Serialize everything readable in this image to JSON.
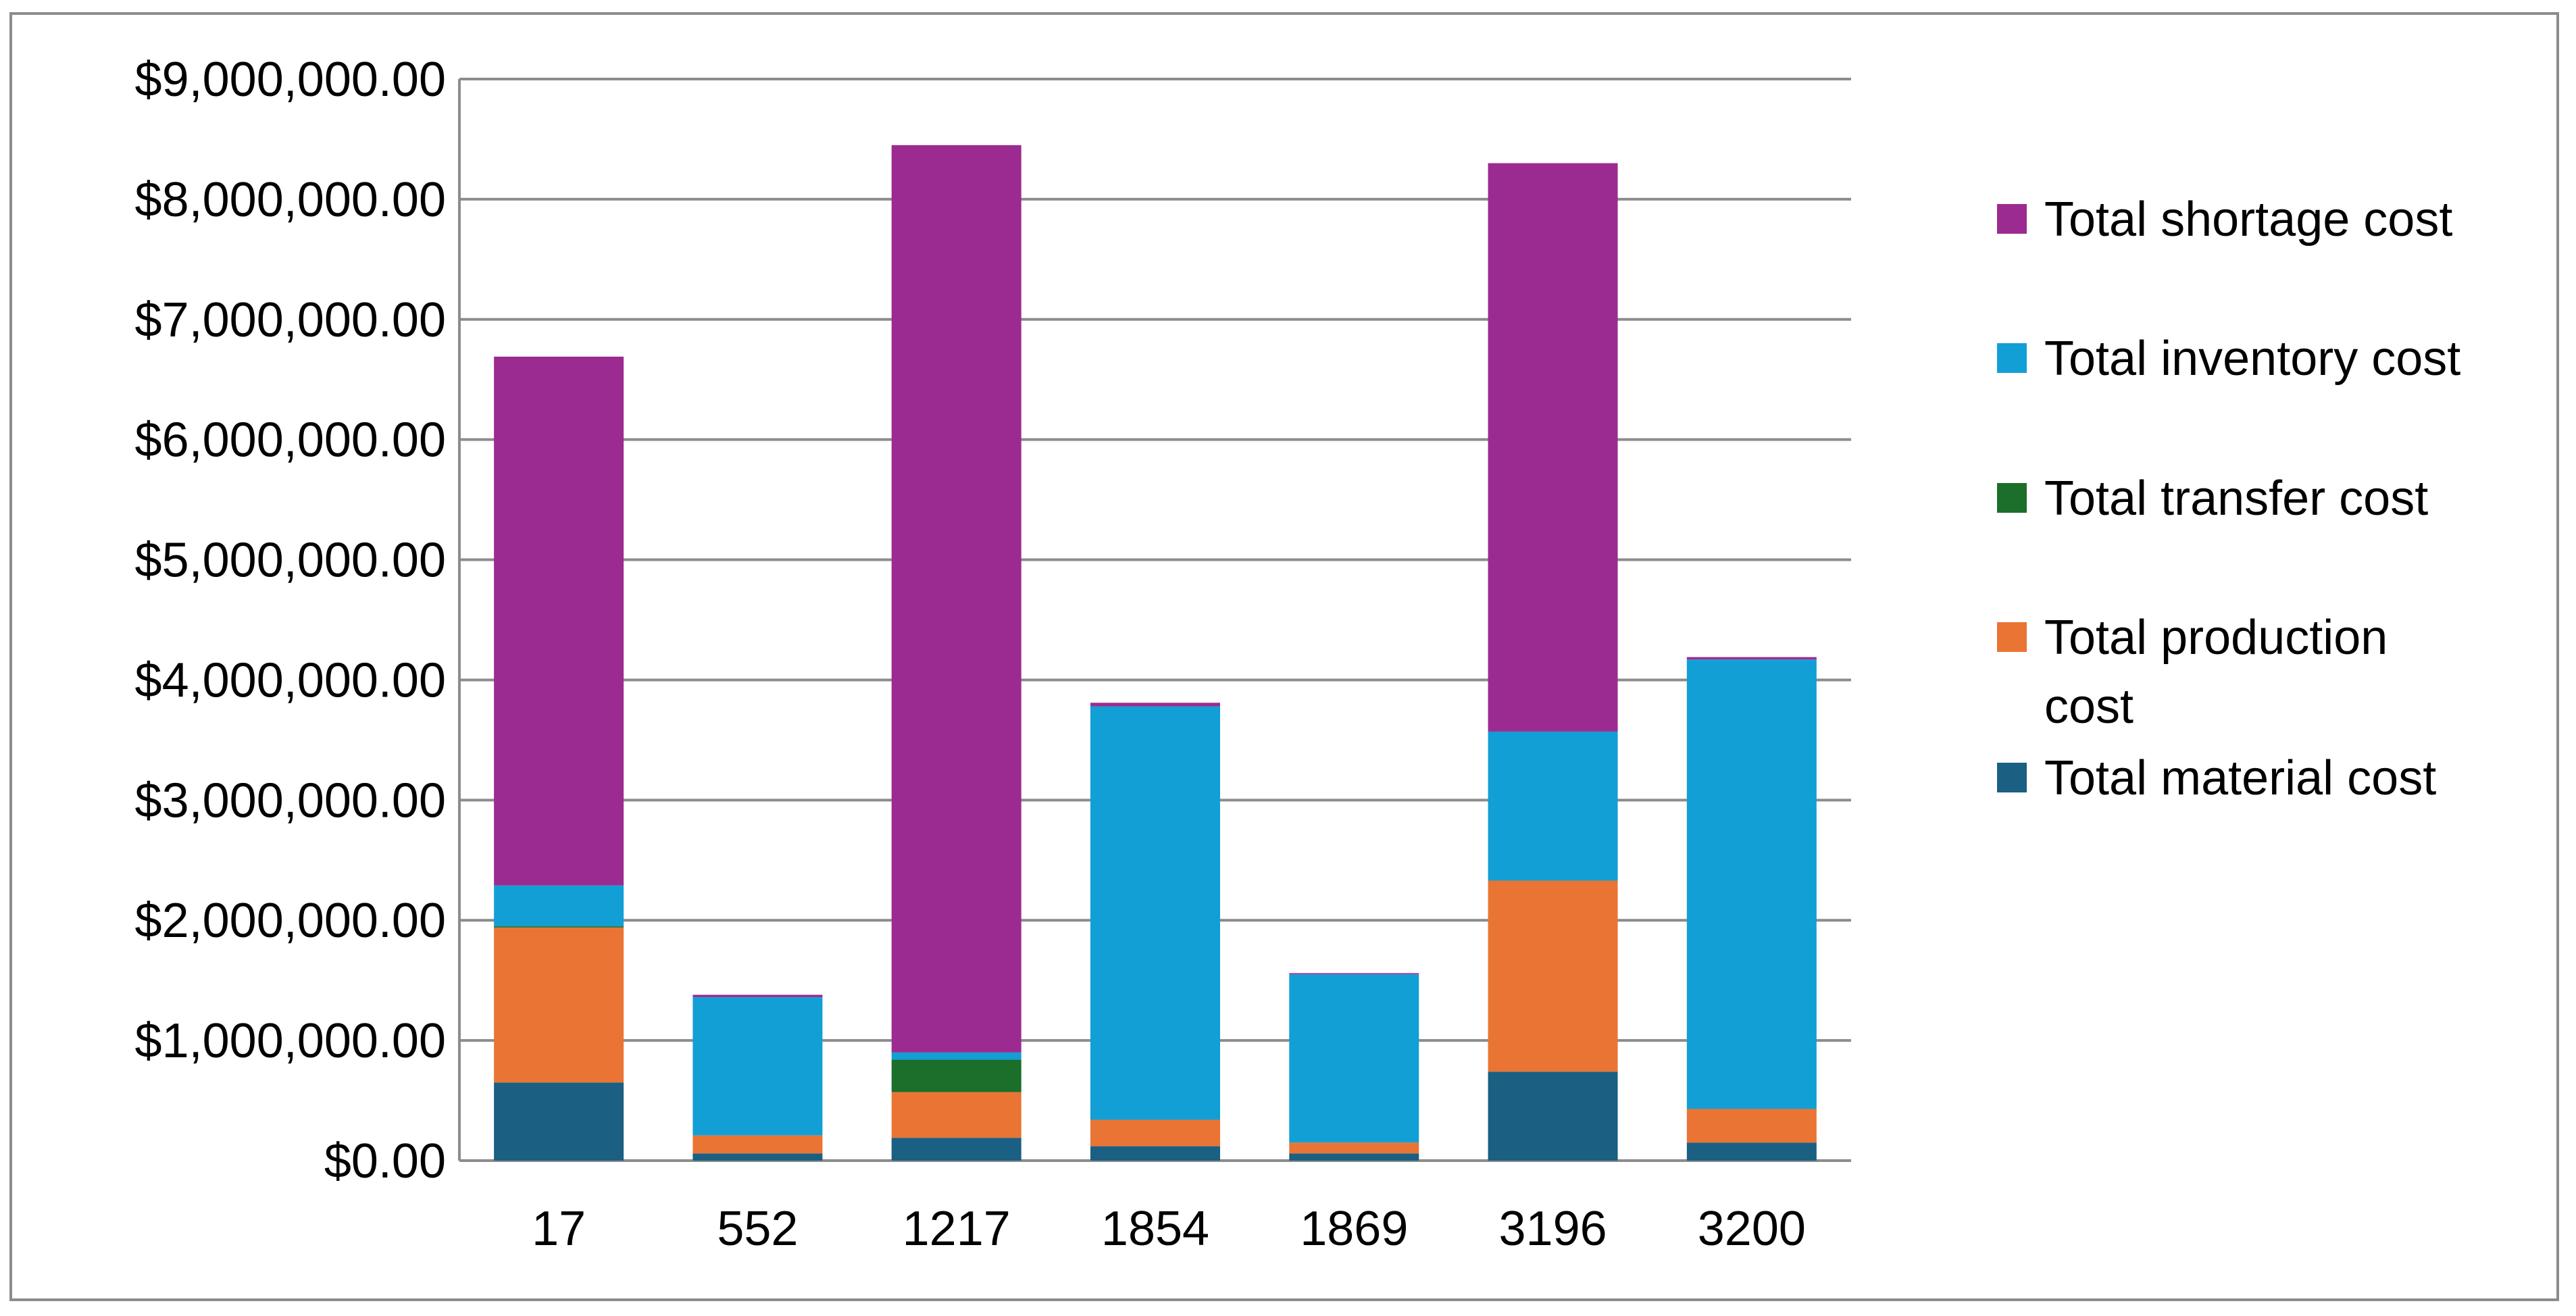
{
  "chart_data": {
    "type": "bar",
    "stacked": true,
    "title": "",
    "xlabel": "",
    "ylabel": "",
    "categories": [
      "17",
      "552",
      "1217",
      "1854",
      "1869",
      "3196",
      "3200"
    ],
    "ylim": [
      0,
      9000000
    ],
    "y_ticks": [
      0,
      1000000,
      2000000,
      3000000,
      4000000,
      5000000,
      6000000,
      7000000,
      8000000,
      9000000
    ],
    "y_tick_labels": [
      "$0.00",
      "$1,000,000.00",
      "$2,000,000.00",
      "$3,000,000.00",
      "$4,000,000.00",
      "$5,000,000.00",
      "$6,000,000.00",
      "$7,000,000.00",
      "$8,000,000.00",
      "$9,000,000.00"
    ],
    "grid": true,
    "legend_position": "right",
    "series": [
      {
        "name": "Total material cost",
        "color": "#1b5f82",
        "values": [
          650000,
          60000,
          190000,
          120000,
          60000,
          740000,
          150000
        ]
      },
      {
        "name": "Total production cost",
        "color": "#ea7433",
        "values": [
          1290000,
          150000,
          380000,
          220000,
          90000,
          1590000,
          280000
        ]
      },
      {
        "name": "Total transfer cost",
        "color": "#1c6e2b",
        "values": [
          10000,
          0,
          270000,
          0,
          0,
          0,
          0
        ]
      },
      {
        "name": "Total inventory cost",
        "color": "#129fd5",
        "values": [
          340000,
          1150000,
          60000,
          3440000,
          1400000,
          1240000,
          3740000
        ]
      },
      {
        "name": "Total shortage cost",
        "color": "#9c2b91",
        "values": [
          4400000,
          20000,
          7550000,
          30000,
          10000,
          4730000,
          20000
        ]
      }
    ],
    "legend_order": [
      "Total shortage cost",
      "Total inventory cost",
      "Total transfer cost",
      "Total production cost",
      "Total material cost"
    ],
    "axis_color": "#8c8c8c"
  }
}
